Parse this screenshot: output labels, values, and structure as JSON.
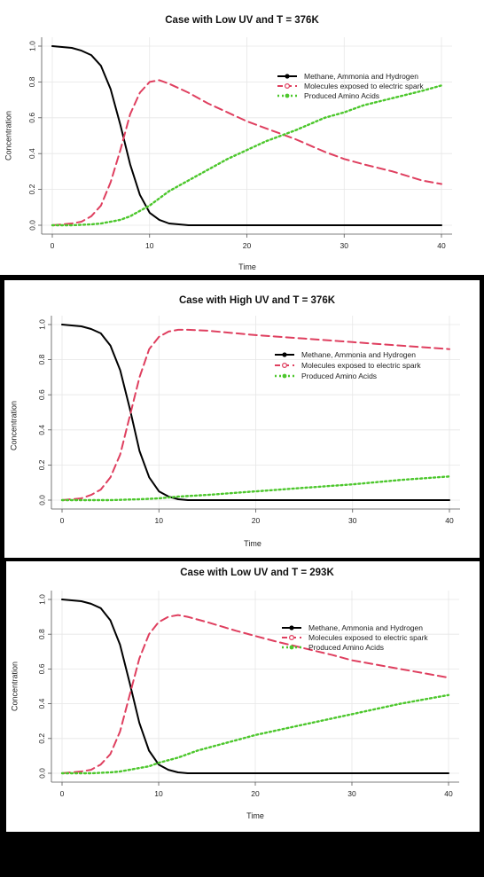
{
  "chart_data": [
    {
      "type": "line",
      "title": "Case with Low UV and T = 376K",
      "xlabel": "Time",
      "ylabel": "Concentration",
      "xlim": [
        0,
        40
      ],
      "ylim": [
        0,
        1.0
      ],
      "xticks": [
        "0",
        "10",
        "20",
        "30",
        "40"
      ],
      "yticks": [
        "0.0",
        "0.2",
        "0.4",
        "0.6",
        "0.8",
        "1.0"
      ],
      "grid": true,
      "legend": "top-right",
      "series": [
        {
          "name": "Methane, Ammonia and Hydrogen",
          "color": "#000000",
          "style": "solid",
          "x": [
            0,
            1,
            2,
            3,
            4,
            5,
            6,
            7,
            8,
            9,
            10,
            11,
            12,
            13,
            14,
            15,
            20,
            25,
            30,
            35,
            40
          ],
          "y": [
            1.0,
            0.995,
            0.99,
            0.975,
            0.95,
            0.89,
            0.76,
            0.56,
            0.34,
            0.17,
            0.07,
            0.03,
            0.01,
            0.005,
            0.0,
            0.0,
            0.0,
            0.0,
            0.0,
            0.0,
            0.0
          ]
        },
        {
          "name": "Molecules exposed to electric spark",
          "color": "#df3f5f",
          "style": "dashed",
          "x": [
            0,
            1,
            2,
            3,
            4,
            5,
            6,
            7,
            8,
            9,
            10,
            11,
            12,
            14,
            16,
            18,
            20,
            22,
            25,
            28,
            30,
            32,
            35,
            38,
            40
          ],
          "y": [
            0.0,
            0.005,
            0.01,
            0.02,
            0.05,
            0.11,
            0.24,
            0.42,
            0.62,
            0.74,
            0.8,
            0.81,
            0.79,
            0.74,
            0.68,
            0.63,
            0.58,
            0.54,
            0.48,
            0.41,
            0.37,
            0.34,
            0.3,
            0.25,
            0.23
          ]
        },
        {
          "name": "Produced Amino Acids",
          "color": "#4cc72c",
          "style": "dotted",
          "x": [
            0,
            2,
            4,
            5,
            6,
            7,
            8,
            9,
            10,
            11,
            12,
            14,
            16,
            18,
            20,
            22,
            25,
            28,
            30,
            32,
            35,
            38,
            40
          ],
          "y": [
            0.0,
            0.0,
            0.005,
            0.01,
            0.02,
            0.03,
            0.05,
            0.08,
            0.11,
            0.15,
            0.19,
            0.25,
            0.31,
            0.37,
            0.42,
            0.47,
            0.53,
            0.6,
            0.63,
            0.67,
            0.71,
            0.75,
            0.78
          ]
        }
      ]
    },
    {
      "type": "line",
      "title": "Case with High UV and T = 376K",
      "xlabel": "Time",
      "ylabel": "Concentration",
      "xlim": [
        0,
        40
      ],
      "ylim": [
        0,
        1.0
      ],
      "xticks": [
        "0",
        "10",
        "20",
        "30",
        "40"
      ],
      "yticks": [
        "0.0",
        "0.2",
        "0.4",
        "0.6",
        "0.8",
        "1.0"
      ],
      "grid": true,
      "legend": "top-right",
      "series": [
        {
          "name": "Methane, Ammonia and Hydrogen",
          "color": "#000000",
          "style": "solid",
          "x": [
            0,
            1,
            2,
            3,
            4,
            5,
            6,
            7,
            8,
            9,
            10,
            11,
            12,
            13,
            14,
            15,
            20,
            25,
            30,
            35,
            40
          ],
          "y": [
            1.0,
            0.995,
            0.99,
            0.975,
            0.95,
            0.88,
            0.74,
            0.52,
            0.28,
            0.13,
            0.05,
            0.02,
            0.005,
            0.0,
            0.0,
            0.0,
            0.0,
            0.0,
            0.0,
            0.0,
            0.0
          ]
        },
        {
          "name": "Molecules exposed to electric spark",
          "color": "#df3f5f",
          "style": "dashed",
          "x": [
            0,
            1,
            2,
            3,
            4,
            5,
            6,
            7,
            8,
            9,
            10,
            11,
            12,
            13,
            15,
            18,
            20,
            25,
            30,
            35,
            40
          ],
          "y": [
            0.0,
            0.005,
            0.01,
            0.03,
            0.06,
            0.13,
            0.26,
            0.48,
            0.7,
            0.86,
            0.93,
            0.96,
            0.97,
            0.97,
            0.965,
            0.95,
            0.94,
            0.92,
            0.9,
            0.88,
            0.86
          ]
        },
        {
          "name": "Produced Amino Acids",
          "color": "#4cc72c",
          "style": "dotted",
          "x": [
            0,
            5,
            8,
            10,
            12,
            15,
            20,
            25,
            30,
            35,
            40
          ],
          "y": [
            0.0,
            0.0,
            0.005,
            0.01,
            0.02,
            0.03,
            0.05,
            0.07,
            0.09,
            0.115,
            0.135
          ]
        }
      ]
    },
    {
      "type": "line",
      "title": "Case with Low UV and T = 293K",
      "xlabel": "Time",
      "ylabel": "Concentration",
      "xlim": [
        0,
        40
      ],
      "ylim": [
        0,
        1.0
      ],
      "xticks": [
        "0",
        "10",
        "20",
        "30",
        "40"
      ],
      "yticks": [
        "0.0",
        "0.2",
        "0.4",
        "0.6",
        "0.8",
        "1.0"
      ],
      "grid": true,
      "legend": "top-right",
      "series": [
        {
          "name": "Methane, Ammonia and Hydrogen",
          "color": "#000000",
          "style": "solid",
          "x": [
            0,
            1,
            2,
            3,
            4,
            5,
            6,
            7,
            8,
            9,
            10,
            11,
            12,
            13,
            14,
            15,
            20,
            25,
            30,
            35,
            40
          ],
          "y": [
            1.0,
            0.995,
            0.99,
            0.975,
            0.95,
            0.88,
            0.74,
            0.52,
            0.29,
            0.13,
            0.05,
            0.02,
            0.005,
            0.0,
            0.0,
            0.0,
            0.0,
            0.0,
            0.0,
            0.0,
            0.0
          ]
        },
        {
          "name": "Molecules exposed to electric spark",
          "color": "#df3f5f",
          "style": "dashed",
          "x": [
            0,
            1,
            2,
            3,
            4,
            5,
            6,
            7,
            8,
            9,
            10,
            11,
            12,
            13,
            15,
            18,
            20,
            22,
            25,
            28,
            30,
            35,
            40
          ],
          "y": [
            0.0,
            0.005,
            0.01,
            0.02,
            0.05,
            0.11,
            0.24,
            0.45,
            0.66,
            0.8,
            0.87,
            0.9,
            0.91,
            0.9,
            0.87,
            0.82,
            0.79,
            0.76,
            0.72,
            0.68,
            0.65,
            0.6,
            0.55
          ]
        },
        {
          "name": "Produced Amino Acids",
          "color": "#4cc72c",
          "style": "dotted",
          "x": [
            0,
            3,
            5,
            6,
            7,
            8,
            9,
            10,
            12,
            14,
            16,
            18,
            20,
            25,
            30,
            35,
            40
          ],
          "y": [
            0.0,
            0.0,
            0.005,
            0.01,
            0.02,
            0.03,
            0.04,
            0.06,
            0.09,
            0.13,
            0.16,
            0.19,
            0.22,
            0.28,
            0.34,
            0.4,
            0.45
          ]
        }
      ]
    }
  ]
}
